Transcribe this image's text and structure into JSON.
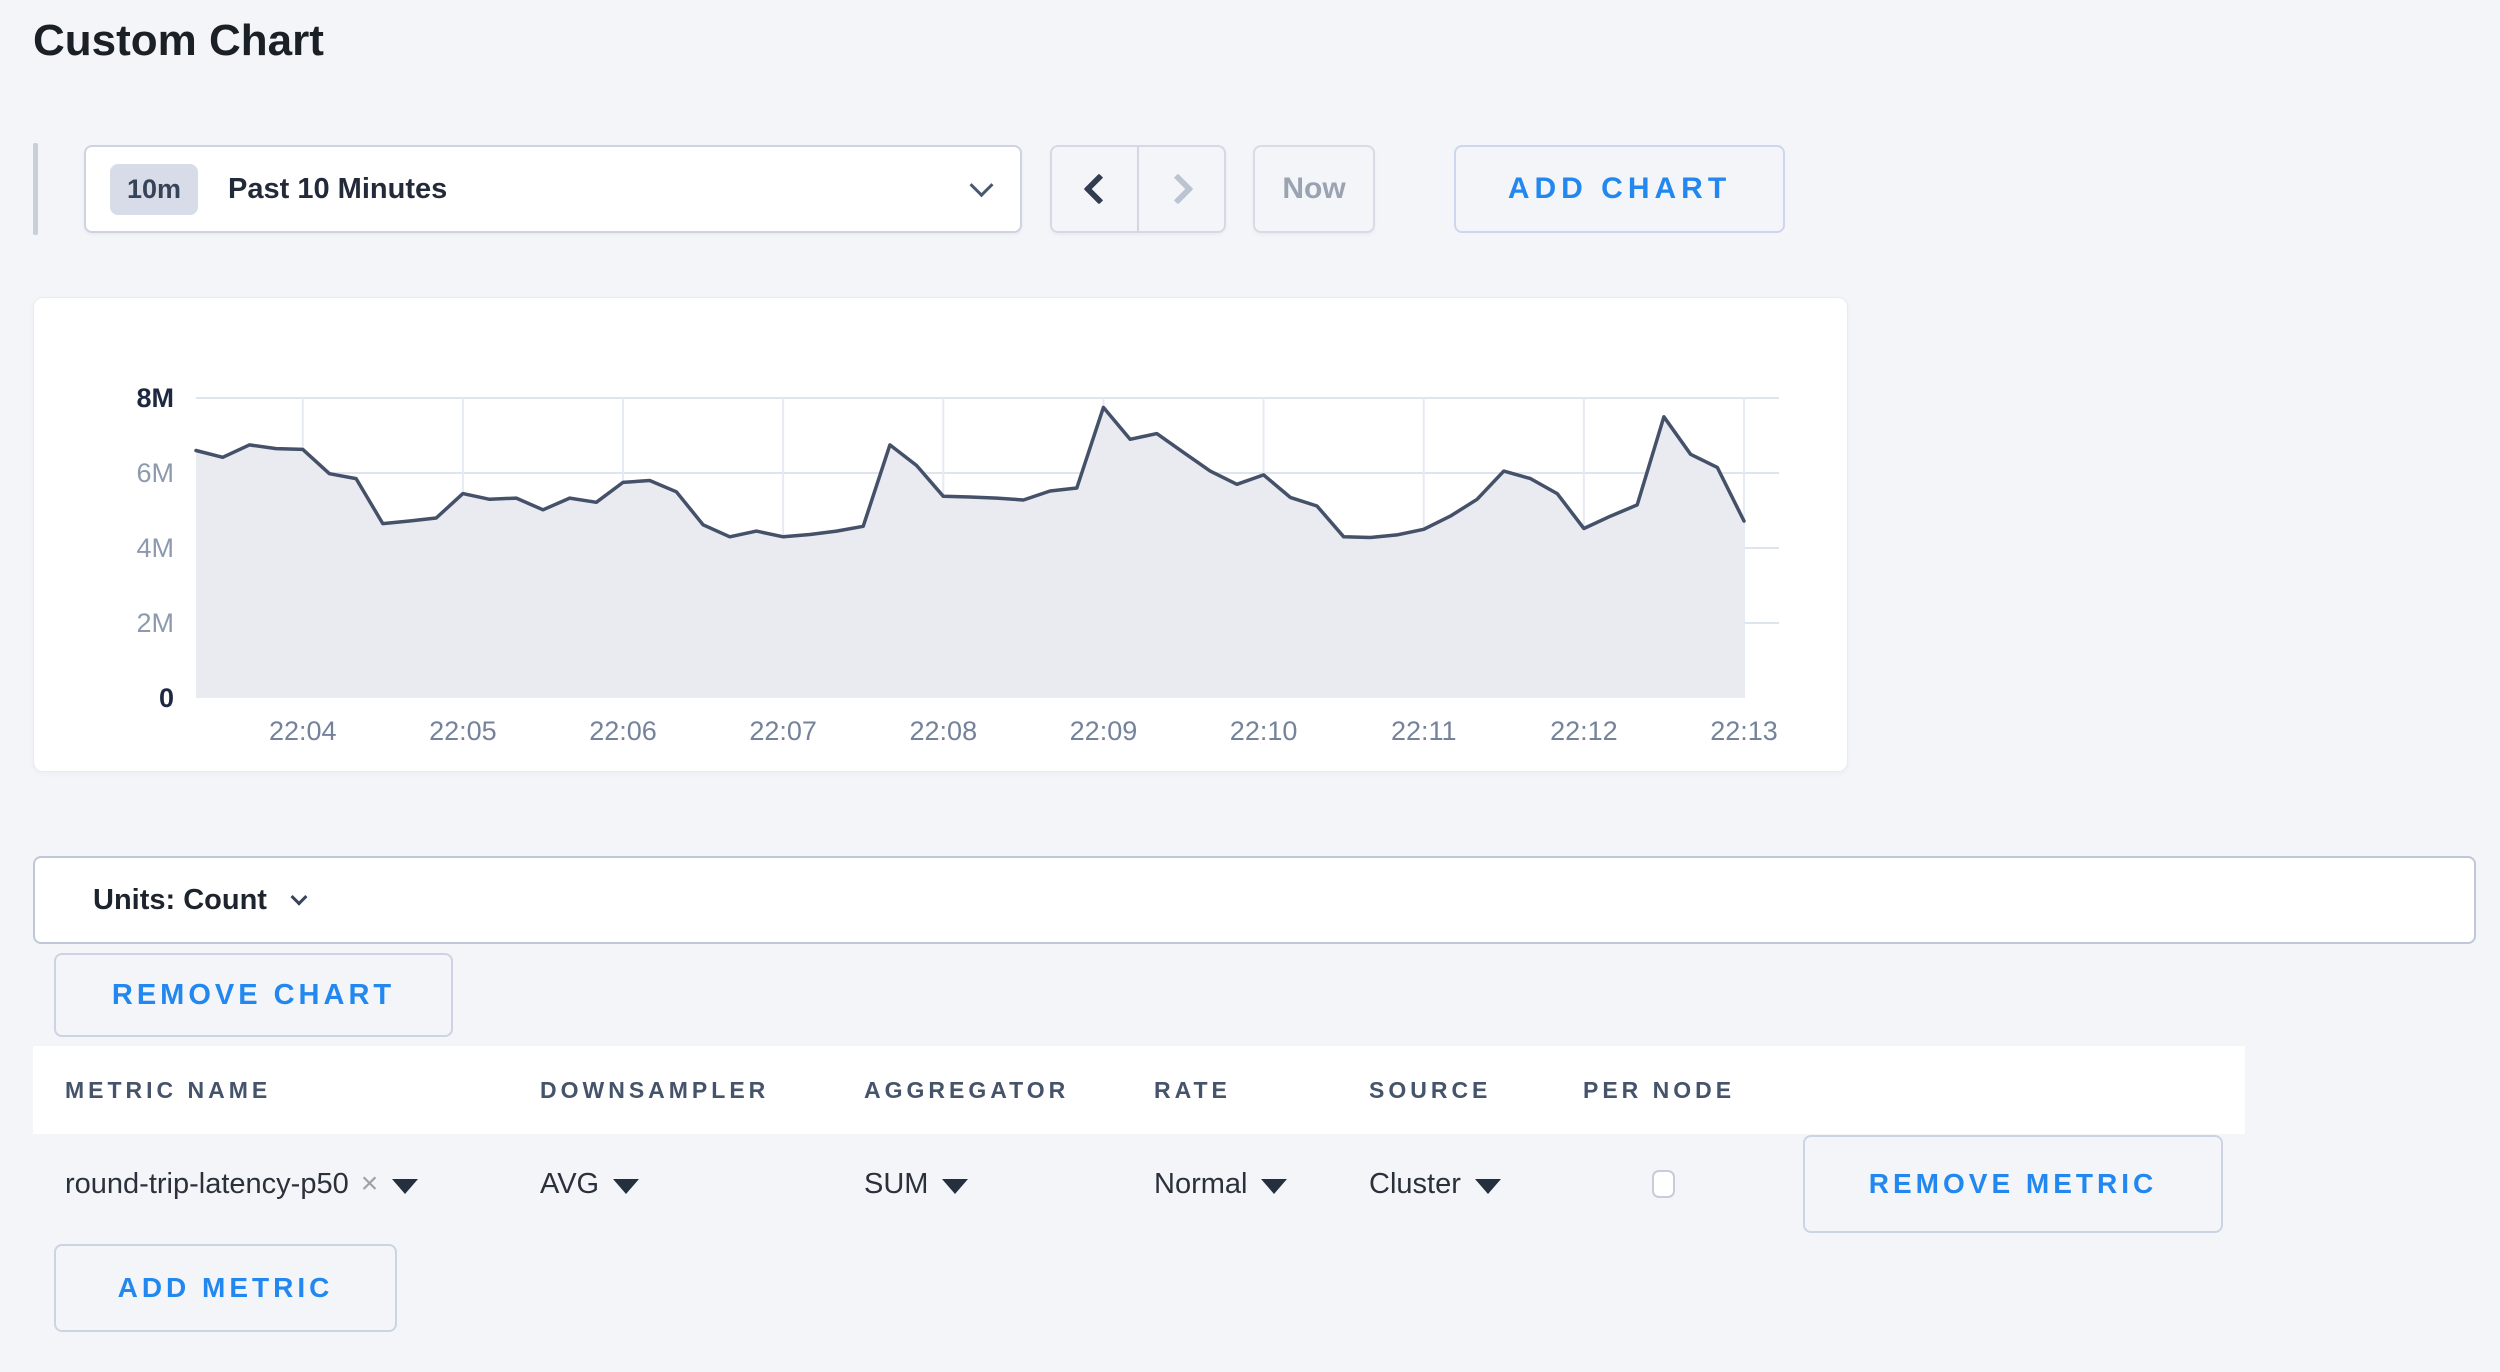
{
  "page": {
    "title": "Custom Chart"
  },
  "time_controls": {
    "range_badge": "10m",
    "range_label": "Past 10 Minutes",
    "now_label": "Now",
    "add_chart_label": "ADD CHART"
  },
  "chart_data": {
    "type": "area",
    "title": "",
    "series_name": "round-trip-latency-p50",
    "x_start": "22:03:20",
    "x_interval_seconds": 10,
    "x_tick_labels": [
      "22:04",
      "22:05",
      "22:06",
      "22:07",
      "22:08",
      "22:09",
      "22:10",
      "22:11",
      "22:12",
      "22:13"
    ],
    "first_tick_point_index": 4,
    "points_per_tick": 6,
    "y_ticks": [
      {
        "label": "0",
        "value_millions": 0,
        "emphasis": true
      },
      {
        "label": "2M",
        "value_millions": 2,
        "emphasis": false
      },
      {
        "label": "4M",
        "value_millions": 4,
        "emphasis": false
      },
      {
        "label": "6M",
        "value_millions": 6,
        "emphasis": false
      },
      {
        "label": "8M",
        "value_millions": 8,
        "emphasis": true
      }
    ],
    "ylim_millions": [
      0,
      8
    ],
    "values_millions": [
      6.6,
      6.42,
      6.75,
      6.65,
      6.63,
      5.98,
      5.85,
      4.65,
      4.72,
      4.8,
      5.45,
      5.3,
      5.33,
      5.02,
      5.33,
      5.22,
      5.75,
      5.8,
      5.5,
      4.62,
      4.3,
      4.45,
      4.3,
      4.36,
      4.45,
      4.58,
      6.75,
      6.2,
      5.38,
      5.36,
      5.33,
      5.28,
      5.52,
      5.6,
      7.75,
      6.9,
      7.05,
      6.55,
      6.05,
      5.7,
      5.95,
      5.35,
      5.12,
      4.3,
      4.28,
      4.35,
      4.5,
      4.85,
      5.3,
      6.05,
      5.85,
      5.45,
      4.52,
      4.85,
      5.15,
      7.5,
      6.5,
      6.15,
      4.72
    ],
    "grid": true,
    "legend": "none",
    "line_color": "#445168",
    "fill_color": "#e9ebf1",
    "vgrid_color": "#e6eaf2",
    "hgrid_color": "#dfe5ef",
    "x_label_color": "#75829b",
    "y_label_color": "#8d99ad",
    "y_label_emphasis_color": "#1d2841"
  },
  "units_bar": {
    "label": "Units: Count"
  },
  "chart_actions": {
    "remove_chart_label": "REMOVE CHART"
  },
  "metrics_table": {
    "columns": [
      "METRIC NAME",
      "DOWNSAMPLER",
      "AGGREGATOR",
      "RATE",
      "SOURCE",
      "PER NODE"
    ],
    "rows": [
      {
        "metric_name": "round-trip-latency-p50",
        "downsampler": "AVG",
        "aggregator": "SUM",
        "rate": "Normal",
        "source": "Cluster",
        "per_node_checked": false,
        "remove_label": "REMOVE METRIC"
      }
    ],
    "add_metric_label": "ADD METRIC"
  },
  "colors": {
    "accent_blue": "#2288f0",
    "page_background": "#f4f5f9",
    "card_background": "#ffffff"
  }
}
